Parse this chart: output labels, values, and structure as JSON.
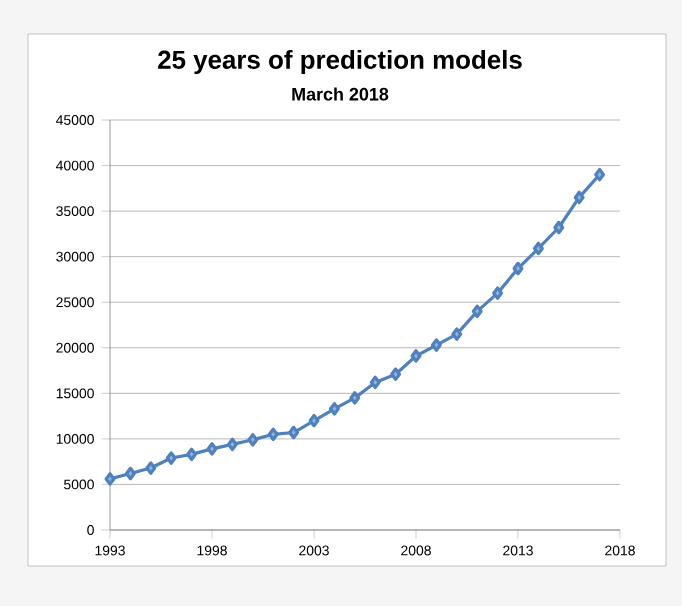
{
  "chart_data": {
    "type": "line",
    "title": "25 years of prediction models",
    "subtitle": "March 2018",
    "x": [
      1993,
      1994,
      1995,
      1996,
      1997,
      1998,
      1999,
      2000,
      2001,
      2002,
      2003,
      2004,
      2005,
      2006,
      2007,
      2008,
      2009,
      2010,
      2011,
      2012,
      2013,
      2014,
      2015,
      2016,
      2017
    ],
    "series": [
      {
        "color": "#4f81bd",
        "values": [
          5600,
          6200,
          6800,
          7900,
          8300,
          8900,
          9400,
          9900,
          10500,
          10700,
          12000,
          13300,
          14500,
          16200,
          17100,
          19100,
          20300,
          21500,
          24000,
          26000,
          28700,
          30900,
          33200,
          36500,
          39000
        ]
      }
    ],
    "xlim": [
      1993,
      2018
    ],
    "xticks": [
      1993,
      1998,
      2003,
      2008,
      2013,
      2018
    ],
    "ylim": [
      0,
      45000
    ],
    "yticks": [
      0,
      5000,
      10000,
      15000,
      20000,
      25000,
      30000,
      35000,
      40000,
      45000
    ],
    "grid": "y",
    "marker": "diamond",
    "line_style": "solid"
  }
}
